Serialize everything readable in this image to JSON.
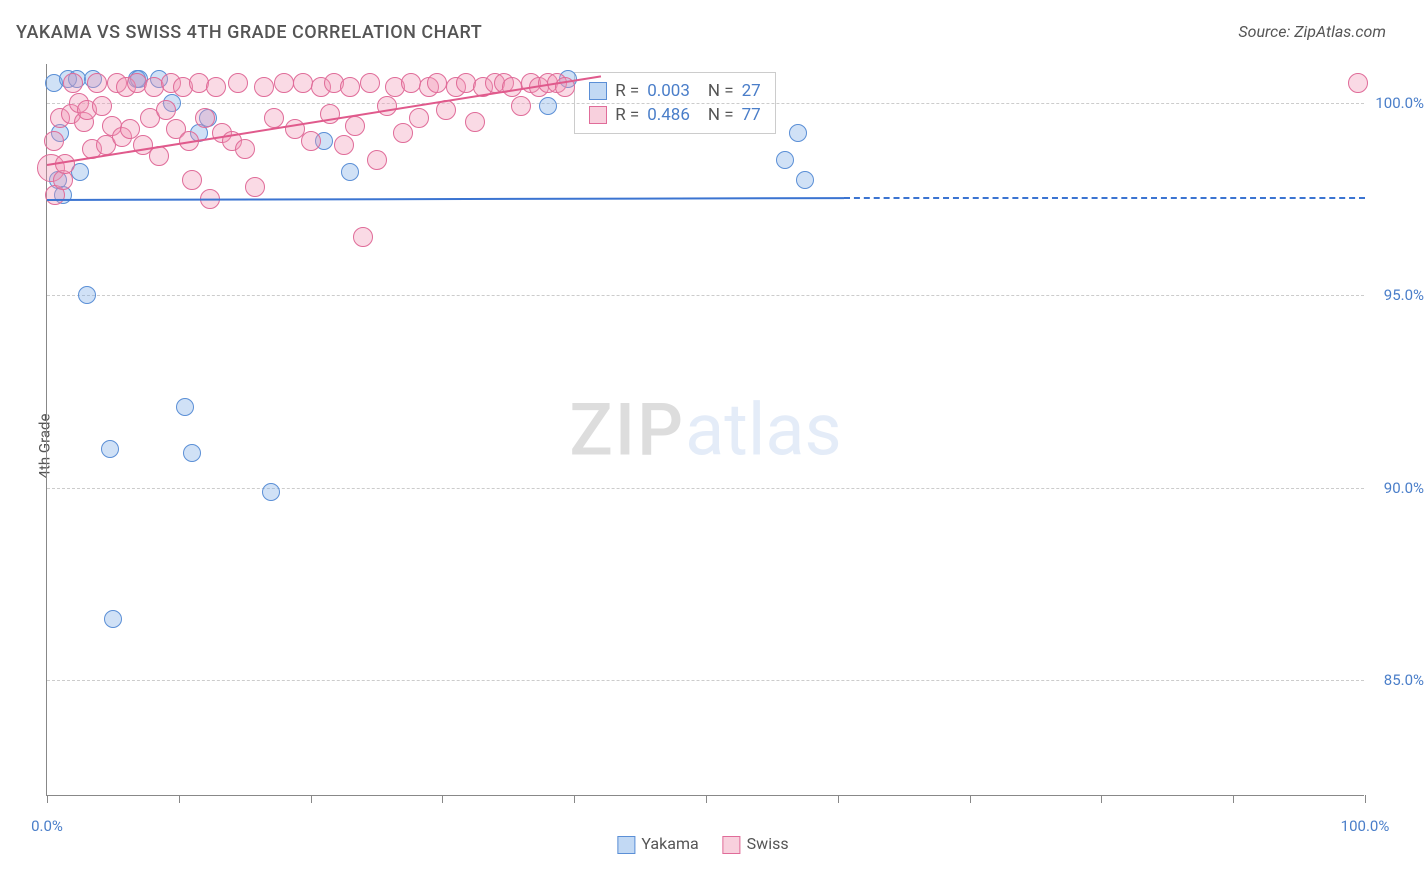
{
  "title": "YAKAMA VS SWISS 4TH GRADE CORRELATION CHART",
  "source": "Source: ZipAtlas.com",
  "ylabel": "4th Grade",
  "watermark_a": "ZIP",
  "watermark_b": "atlas",
  "chart": {
    "type": "scatter",
    "xlim": [
      0,
      100
    ],
    "ylim": [
      82,
      101
    ],
    "x_ticks": [
      0,
      10,
      20,
      30,
      40,
      50,
      60,
      70,
      80,
      90,
      100
    ],
    "x_tick_labels": {
      "0": "0.0%",
      "100": "100.0%"
    },
    "y_gridlines": [
      85,
      90,
      95,
      100
    ],
    "y_tick_labels": {
      "85": "85.0%",
      "90": "90.0%",
      "95": "95.0%",
      "100": "100.0%"
    },
    "grid_color": "#cccccc",
    "axis_color": "#888888",
    "background_color": "#ffffff",
    "tick_label_color": "#4a7ec9",
    "tick_label_fontsize": 15,
    "title_fontsize": 18,
    "title_color": "#555555"
  },
  "series": [
    {
      "name": "Yakama",
      "fill": "rgba(120,170,230,0.35)",
      "stroke": "#5b8fd6",
      "marker_radius": 9,
      "marker_stroke_width": 1.2,
      "R": "0.003",
      "N": "27",
      "trend": {
        "x0": 0,
        "y0": 97.5,
        "x1": 60.5,
        "y1": 97.55,
        "dash_to_x": 100,
        "color": "#3b74d1",
        "width": 2
      },
      "points": [
        {
          "x": 0.5,
          "y": 100.5
        },
        {
          "x": 0.8,
          "y": 98.0
        },
        {
          "x": 1.0,
          "y": 99.2
        },
        {
          "x": 1.2,
          "y": 97.6
        },
        {
          "x": 1.6,
          "y": 100.6
        },
        {
          "x": 2.3,
          "y": 100.6
        },
        {
          "x": 2.5,
          "y": 98.2
        },
        {
          "x": 3.0,
          "y": 95.0
        },
        {
          "x": 3.5,
          "y": 100.6
        },
        {
          "x": 4.8,
          "y": 91.0
        },
        {
          "x": 5.0,
          "y": 86.6
        },
        {
          "x": 6.8,
          "y": 100.6
        },
        {
          "x": 7.0,
          "y": 100.6
        },
        {
          "x": 8.5,
          "y": 100.6
        },
        {
          "x": 9.5,
          "y": 100.0
        },
        {
          "x": 10.5,
          "y": 92.1
        },
        {
          "x": 11.0,
          "y": 90.9
        },
        {
          "x": 11.5,
          "y": 99.2
        },
        {
          "x": 12.2,
          "y": 99.6
        },
        {
          "x": 17.0,
          "y": 89.9
        },
        {
          "x": 21.0,
          "y": 99.0
        },
        {
          "x": 23.0,
          "y": 98.2
        },
        {
          "x": 38.0,
          "y": 99.9
        },
        {
          "x": 39.5,
          "y": 100.6
        },
        {
          "x": 56.0,
          "y": 98.5
        },
        {
          "x": 57.0,
          "y": 99.2
        },
        {
          "x": 57.5,
          "y": 98.0
        }
      ]
    },
    {
      "name": "Swiss",
      "fill": "rgba(240,150,180,0.35)",
      "stroke": "#e06c99",
      "marker_radius": 10,
      "marker_stroke_width": 1.2,
      "R": "0.486",
      "N": "77",
      "trend": {
        "x0": 0,
        "y0": 98.4,
        "x1": 42,
        "y1": 100.7,
        "dash_to_x": null,
        "color": "#e05a8c",
        "width": 2.5
      },
      "points": [
        {
          "x": 0.3,
          "y": 98.3,
          "r": 14
        },
        {
          "x": 0.5,
          "y": 99.0
        },
        {
          "x": 0.6,
          "y": 97.6
        },
        {
          "x": 1.0,
          "y": 99.6
        },
        {
          "x": 1.2,
          "y": 98.0
        },
        {
          "x": 1.4,
          "y": 98.4
        },
        {
          "x": 1.8,
          "y": 99.7
        },
        {
          "x": 2.0,
          "y": 100.5
        },
        {
          "x": 2.4,
          "y": 100.0
        },
        {
          "x": 2.8,
          "y": 99.5
        },
        {
          "x": 3.0,
          "y": 99.8
        },
        {
          "x": 3.4,
          "y": 98.8
        },
        {
          "x": 3.8,
          "y": 100.5
        },
        {
          "x": 4.2,
          "y": 99.9
        },
        {
          "x": 4.5,
          "y": 98.9
        },
        {
          "x": 4.9,
          "y": 99.4
        },
        {
          "x": 5.3,
          "y": 100.5
        },
        {
          "x": 5.7,
          "y": 99.1
        },
        {
          "x": 6.0,
          "y": 100.4
        },
        {
          "x": 6.3,
          "y": 99.3
        },
        {
          "x": 6.8,
          "y": 100.5
        },
        {
          "x": 7.3,
          "y": 98.9
        },
        {
          "x": 7.8,
          "y": 99.6
        },
        {
          "x": 8.1,
          "y": 100.4
        },
        {
          "x": 8.5,
          "y": 98.6
        },
        {
          "x": 9.0,
          "y": 99.8
        },
        {
          "x": 9.4,
          "y": 100.5
        },
        {
          "x": 9.8,
          "y": 99.3
        },
        {
          "x": 10.3,
          "y": 100.4
        },
        {
          "x": 10.8,
          "y": 99.0
        },
        {
          "x": 11.0,
          "y": 98.0
        },
        {
          "x": 11.5,
          "y": 100.5
        },
        {
          "x": 12.0,
          "y": 99.6
        },
        {
          "x": 12.4,
          "y": 97.5
        },
        {
          "x": 12.8,
          "y": 100.4
        },
        {
          "x": 13.3,
          "y": 99.2
        },
        {
          "x": 14.0,
          "y": 99.0
        },
        {
          "x": 14.5,
          "y": 100.5
        },
        {
          "x": 15.0,
          "y": 98.8
        },
        {
          "x": 15.8,
          "y": 97.8
        },
        {
          "x": 16.5,
          "y": 100.4
        },
        {
          "x": 17.2,
          "y": 99.6
        },
        {
          "x": 18.0,
          "y": 100.5
        },
        {
          "x": 18.8,
          "y": 99.3
        },
        {
          "x": 19.4,
          "y": 100.5
        },
        {
          "x": 20.0,
          "y": 99.0
        },
        {
          "x": 20.8,
          "y": 100.4
        },
        {
          "x": 21.5,
          "y": 99.7
        },
        {
          "x": 21.8,
          "y": 100.5
        },
        {
          "x": 22.5,
          "y": 98.9
        },
        {
          "x": 23.0,
          "y": 100.4
        },
        {
          "x": 23.4,
          "y": 99.4
        },
        {
          "x": 24.0,
          "y": 96.5
        },
        {
          "x": 24.5,
          "y": 100.5
        },
        {
          "x": 25.0,
          "y": 98.5
        },
        {
          "x": 25.8,
          "y": 99.9
        },
        {
          "x": 26.4,
          "y": 100.4
        },
        {
          "x": 27.0,
          "y": 99.2
        },
        {
          "x": 27.6,
          "y": 100.5
        },
        {
          "x": 28.2,
          "y": 99.6
        },
        {
          "x": 29.0,
          "y": 100.4
        },
        {
          "x": 29.6,
          "y": 100.5
        },
        {
          "x": 30.3,
          "y": 99.8
        },
        {
          "x": 31.0,
          "y": 100.4
        },
        {
          "x": 31.8,
          "y": 100.5
        },
        {
          "x": 32.5,
          "y": 99.5
        },
        {
          "x": 33.1,
          "y": 100.4
        },
        {
          "x": 34.0,
          "y": 100.5
        },
        {
          "x": 34.7,
          "y": 100.5
        },
        {
          "x": 35.3,
          "y": 100.4
        },
        {
          "x": 36.0,
          "y": 99.9
        },
        {
          "x": 36.7,
          "y": 100.5
        },
        {
          "x": 37.3,
          "y": 100.4
        },
        {
          "x": 38.0,
          "y": 100.5
        },
        {
          "x": 38.7,
          "y": 100.5
        },
        {
          "x": 39.3,
          "y": 100.4
        },
        {
          "x": 99.5,
          "y": 100.5
        }
      ]
    }
  ],
  "legend": {
    "rows": [
      {
        "swatch_fill": "rgba(120,170,230,0.45)",
        "swatch_stroke": "#5b8fd6",
        "R_label": "R =",
        "R": "0.003",
        "N_label": "N =",
        "N": "27"
      },
      {
        "swatch_fill": "rgba(240,150,180,0.45)",
        "swatch_stroke": "#e06c99",
        "R_label": "R =",
        "R": "0.486",
        "N_label": "N =",
        "N": "77"
      }
    ]
  },
  "bottom_legend": [
    {
      "label": "Yakama",
      "fill": "rgba(120,170,230,0.45)",
      "stroke": "#5b8fd6"
    },
    {
      "label": "Swiss",
      "fill": "rgba(240,150,180,0.45)",
      "stroke": "#e06c99"
    }
  ]
}
